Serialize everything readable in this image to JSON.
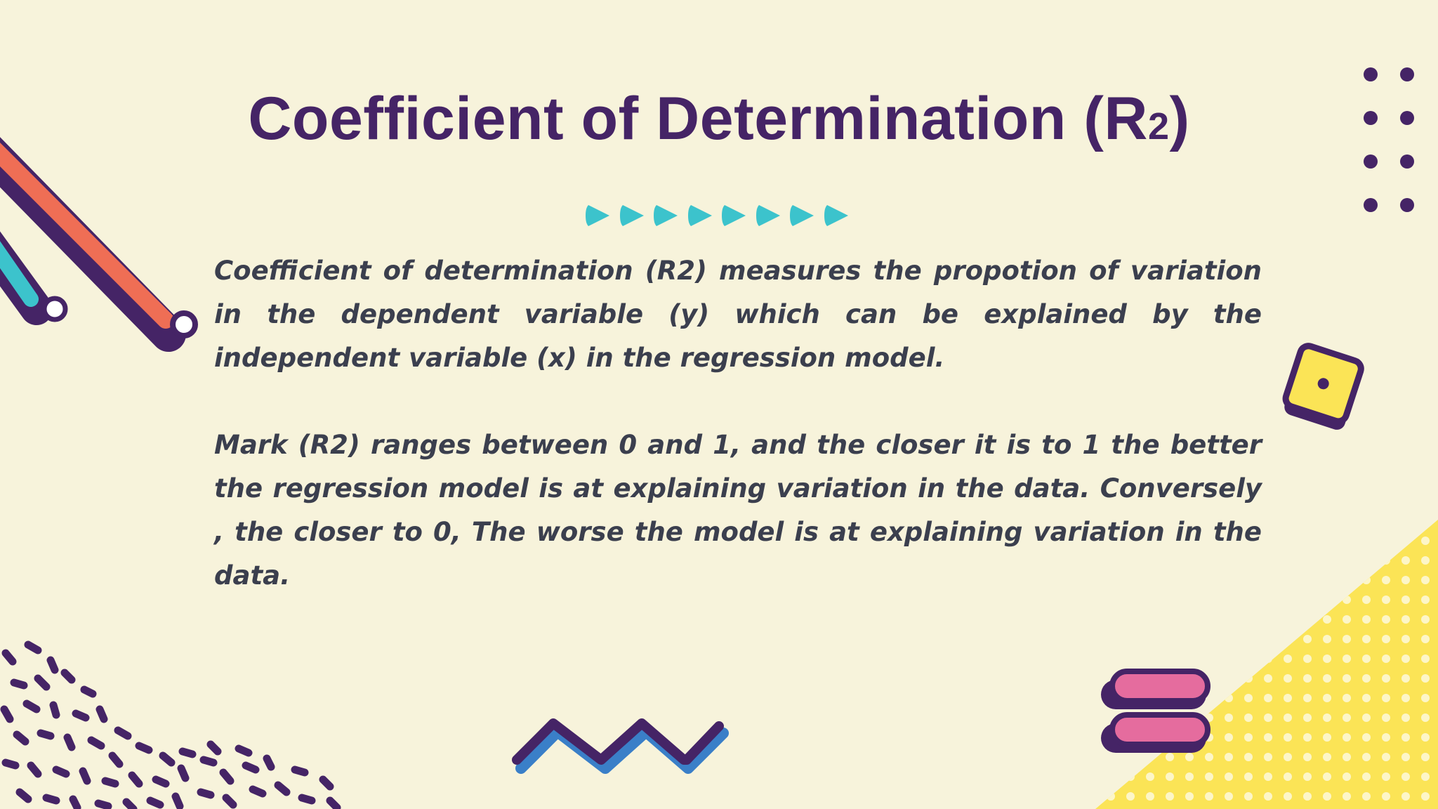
{
  "slide": {
    "title": "Coefficient of Determination (R",
    "title_subscript": "2",
    "title_close": ")",
    "paragraphs": [
      "Coefficient of determination (R2) measures the propotion of variation in the dependent variable (y) which can be explained by the independent variable (x) in the regression model.",
      "Mark (R2) ranges between 0 and 1, and the closer it is to 1 the better the regression model is at explaining variation in the data. Conversely , the closer to 0, The worse the model is at explaining variation in the data."
    ]
  },
  "colors": {
    "background": "#f7f3db",
    "title": "#452466",
    "body_text": "#3b3f4e",
    "purple": "#452466",
    "coral": "#ef6e55",
    "teal": "#3cc3cc",
    "yellow": "#fbe456",
    "pink": "#e56c9e",
    "blue": "#3a7fc8"
  },
  "decorations": {
    "arrow_count": 8,
    "icons": [
      "diagonal-stripes",
      "arrow-row",
      "dot-grid",
      "tilted-square",
      "squiggle-pattern",
      "zigzag-line",
      "stacked-pills",
      "dotted-triangle"
    ]
  }
}
